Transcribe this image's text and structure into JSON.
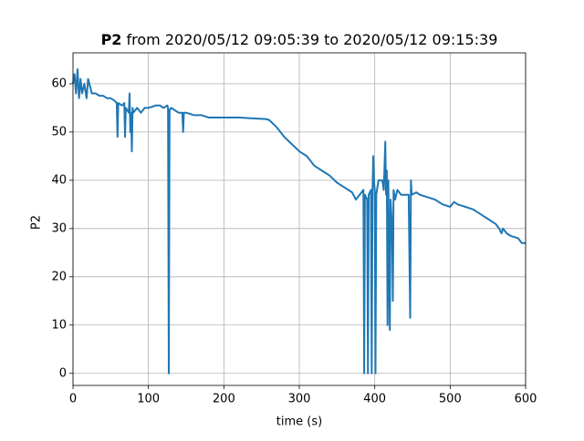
{
  "chart_data": {
    "type": "line",
    "title_bold": "P2",
    "title": "from 2020/05/12 09:05:39 to 2020/05/12 09:15:39",
    "x_label": "time (s)",
    "y_label": "P2",
    "xlim": [
      0,
      600
    ],
    "ylim": [
      -2.5,
      66.4
    ],
    "xticks": [
      0,
      100,
      200,
      300,
      400,
      500,
      600
    ],
    "yticks": [
      0,
      10,
      20,
      30,
      40,
      50,
      60
    ],
    "grid": true,
    "series": [
      {
        "color": "#1f77b4",
        "x": [
          0,
          2,
          4,
          6,
          8,
          10,
          12,
          15,
          18,
          20,
          25,
          30,
          35,
          40,
          45,
          50,
          55,
          58,
          59,
          60,
          65,
          68,
          69,
          70,
          74,
          75,
          76,
          77,
          78,
          79,
          80,
          85,
          90,
          95,
          100,
          110,
          115,
          120,
          125,
          126,
          127,
          128,
          130,
          140,
          145,
          146,
          147,
          150,
          160,
          170,
          180,
          200,
          220,
          240,
          255,
          260,
          270,
          280,
          290,
          300,
          310,
          320,
          330,
          340,
          350,
          360,
          370,
          375,
          380,
          385,
          386,
          387,
          390,
          391,
          392,
          395,
          396,
          397,
          398,
          399,
          400,
          401,
          402,
          405,
          410,
          412,
          414,
          415,
          416,
          417,
          418,
          420,
          421,
          423,
          424,
          425,
          427,
          430,
          435,
          440,
          445,
          447,
          448,
          449,
          455,
          460,
          470,
          480,
          490,
          500,
          505,
          510,
          520,
          530,
          540,
          550,
          560,
          565,
          568,
          570,
          575,
          580,
          590,
          595,
          600
        ],
        "values": [
          60,
          62,
          58,
          63,
          57,
          61,
          58,
          60,
          57,
          61,
          58,
          58,
          57.5,
          57.5,
          57,
          57,
          56.5,
          56,
          49,
          56,
          55.5,
          56,
          49,
          55,
          54,
          58,
          50,
          54,
          46,
          55,
          54,
          55,
          54,
          55,
          55,
          55.5,
          55.5,
          55,
          55.5,
          55,
          0,
          54.5,
          55,
          54,
          54,
          50,
          54,
          54,
          53.5,
          53.5,
          53,
          53,
          53,
          52.8,
          52.7,
          52.5,
          51,
          49,
          47.5,
          46,
          45,
          43,
          42,
          41,
          39.5,
          38.5,
          37.5,
          36,
          37,
          38,
          0,
          37,
          36,
          0,
          37,
          38,
          0,
          37,
          45,
          40,
          38,
          0,
          37,
          40,
          40,
          38,
          48,
          37,
          42,
          10,
          40,
          9,
          36,
          30,
          15,
          38,
          36,
          38,
          37,
          37,
          37,
          11.5,
          40,
          37,
          37.5,
          37,
          36.5,
          36,
          35,
          34.5,
          35.5,
          35,
          34.5,
          34,
          33,
          32,
          31,
          30,
          29,
          30,
          29,
          28.5,
          28,
          27,
          27
        ]
      }
    ]
  }
}
